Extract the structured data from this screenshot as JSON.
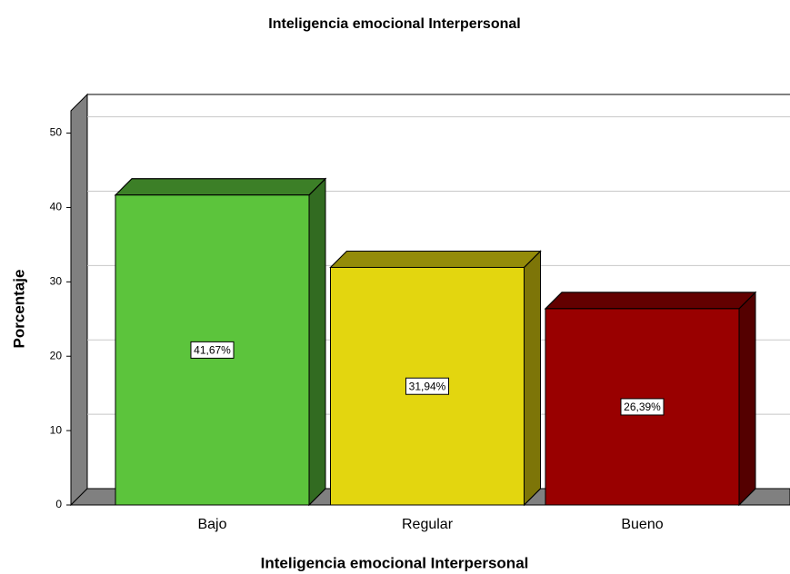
{
  "chart_data": {
    "type": "bar",
    "title": "Inteligencia emocional Interpersonal",
    "x_label": "Inteligencia emocional Interpersonal",
    "y_label": "Porcentaje",
    "categories": [
      "Bajo",
      "Regular",
      "Bueno"
    ],
    "values": [
      41.67,
      31.94,
      26.39
    ],
    "value_labels": [
      "41,67%",
      "31,94%",
      "26,39%"
    ],
    "colors": [
      "#5cc43c",
      "#e3d60f",
      "#990000"
    ],
    "ylim": [
      0,
      53
    ],
    "yticks": [
      0,
      10,
      20,
      30,
      40,
      50
    ],
    "grid": true
  }
}
